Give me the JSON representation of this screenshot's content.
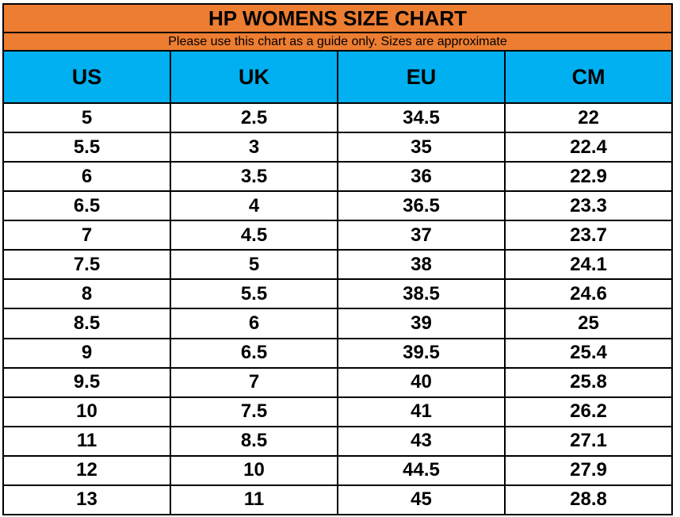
{
  "chart_data": {
    "type": "table",
    "title": "HP WOMENS SIZE CHART",
    "subtitle": "Please use this chart as a guide only. Sizes are approximate",
    "columns": [
      "US",
      "UK",
      "EU",
      "CM"
    ],
    "rows": [
      [
        "5",
        "2.5",
        "34.5",
        "22"
      ],
      [
        "5.5",
        "3",
        "35",
        "22.4"
      ],
      [
        "6",
        "3.5",
        "36",
        "22.9"
      ],
      [
        "6.5",
        "4",
        "36.5",
        "23.3"
      ],
      [
        "7",
        "4.5",
        "37",
        "23.7"
      ],
      [
        "7.5",
        "5",
        "38",
        "24.1"
      ],
      [
        "8",
        "5.5",
        "38.5",
        "24.6"
      ],
      [
        "8.5",
        "6",
        "39",
        "25"
      ],
      [
        "9",
        "6.5",
        "39.5",
        "25.4"
      ],
      [
        "9.5",
        "7",
        "40",
        "25.8"
      ],
      [
        "10",
        "7.5",
        "41",
        "26.2"
      ],
      [
        "11",
        "8.5",
        "43",
        "27.1"
      ],
      [
        "12",
        "10",
        "44.5",
        "27.9"
      ],
      [
        "13",
        "11",
        "45",
        "28.8"
      ]
    ],
    "layout": {
      "legend": "none",
      "grid": "full-borders",
      "title_band_color": "#ED7D31",
      "subtitle_band_color": "#ED7D31",
      "column_header_color": "#00B0F0",
      "border_color": "#000000",
      "text_color": "#000000",
      "row_background": "#FFFFFF"
    }
  }
}
